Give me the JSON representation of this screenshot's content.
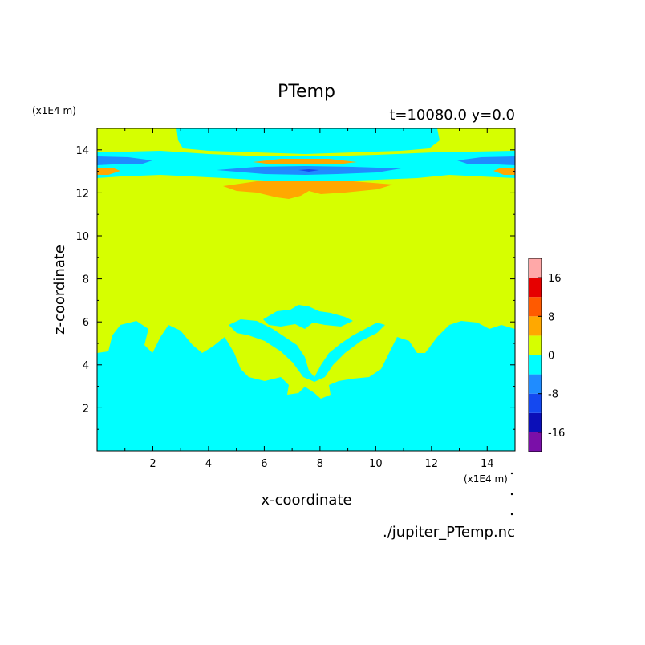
{
  "chart_data": {
    "type": "heatmap",
    "title": "PTemp",
    "subtitle": "t=10080.0 y=0.0",
    "xlabel": "x-coordinate",
    "ylabel": "z-coordinate",
    "x_unit": "(x1E4 m)",
    "y_unit": "(x1E4 m)",
    "xlim": [
      0,
      15
    ],
    "ylim": [
      0,
      15
    ],
    "x_ticks": [
      2,
      4,
      6,
      8,
      10,
      12,
      14
    ],
    "y_ticks": [
      2,
      4,
      6,
      8,
      10,
      12,
      14
    ],
    "colorbar": {
      "levels": [
        -20,
        -16,
        -12,
        -8,
        -4,
        0,
        4,
        8,
        12,
        16,
        20
      ],
      "labels": [
        -16,
        -8,
        0,
        8,
        16
      ],
      "colors": [
        "#7a0fa8",
        "#0b0fb8",
        "#1448f0",
        "#1f8cff",
        "#00ffff",
        "#d6ff00",
        "#ffa800",
        "#ff5a00",
        "#e60000",
        "#ffa8a8"
      ]
    },
    "regions": [
      {
        "value_range": [
          -4,
          0
        ],
        "color": "#00ffff",
        "description_level": "lower layer",
        "z_range": [
          0,
          4.5
        ]
      },
      {
        "value_range": [
          0,
          4
        ],
        "color": "#d6ff00",
        "description_level": "middle layer",
        "z_range": [
          4.5,
          12.5
        ]
      },
      {
        "value_range": [
          4,
          8
        ],
        "color": "#ffa800",
        "description_level": "upper bands",
        "z_range": [
          11.8,
          13.8
        ]
      },
      {
        "value_range": [
          -8,
          -4
        ],
        "color": "#1f8cff",
        "description_level": "upper bands",
        "z_range": [
          12.8,
          13.8
        ]
      },
      {
        "value_range": [
          -4,
          0
        ],
        "color": "#00ffff",
        "description_level": "top cap",
        "z_range": [
          14,
          15
        ]
      }
    ]
  },
  "footer": {
    "source": "./jupiter_PTemp.nc"
  }
}
